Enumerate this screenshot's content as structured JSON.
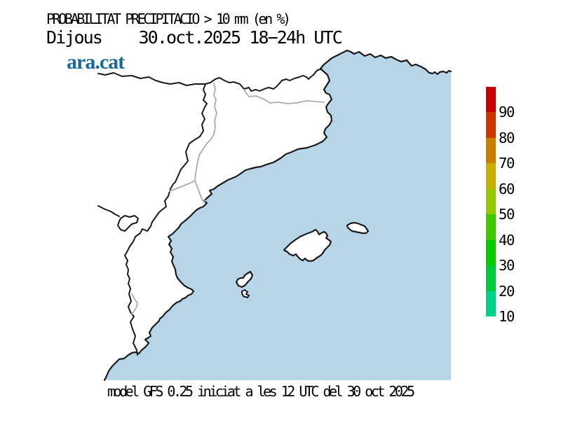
{
  "header": {
    "title_line1": "PROBABILITAT PRECIPITACIO > 10 mm (en %)",
    "title_line2": "Dijous    30.oct.2025 18−24h UTC",
    "logo_text": "ara.cat",
    "logo_color": "#1a699b"
  },
  "map": {
    "sea_color": "#b8d5e8",
    "land_color": "#ffffff",
    "coastline_color": "#1a1a1a",
    "region_border_color": "#1a1a1a",
    "province_border_color": "#ababab"
  },
  "colorbar": {
    "tick_labels": [
      "90",
      "80",
      "70",
      "60",
      "50",
      "40",
      "30",
      "20",
      "10"
    ],
    "segment_colors_top_to_bottom": [
      "#c40000",
      "#c63a00",
      "#c87e00",
      "#c4af00",
      "#96c800",
      "#3fc800",
      "#0bc800",
      "#00c83e",
      "#00d189"
    ]
  },
  "footer": {
    "caption": "model GFS 0.25 iniciat a les 12 UTC del 30 oct 2025"
  }
}
